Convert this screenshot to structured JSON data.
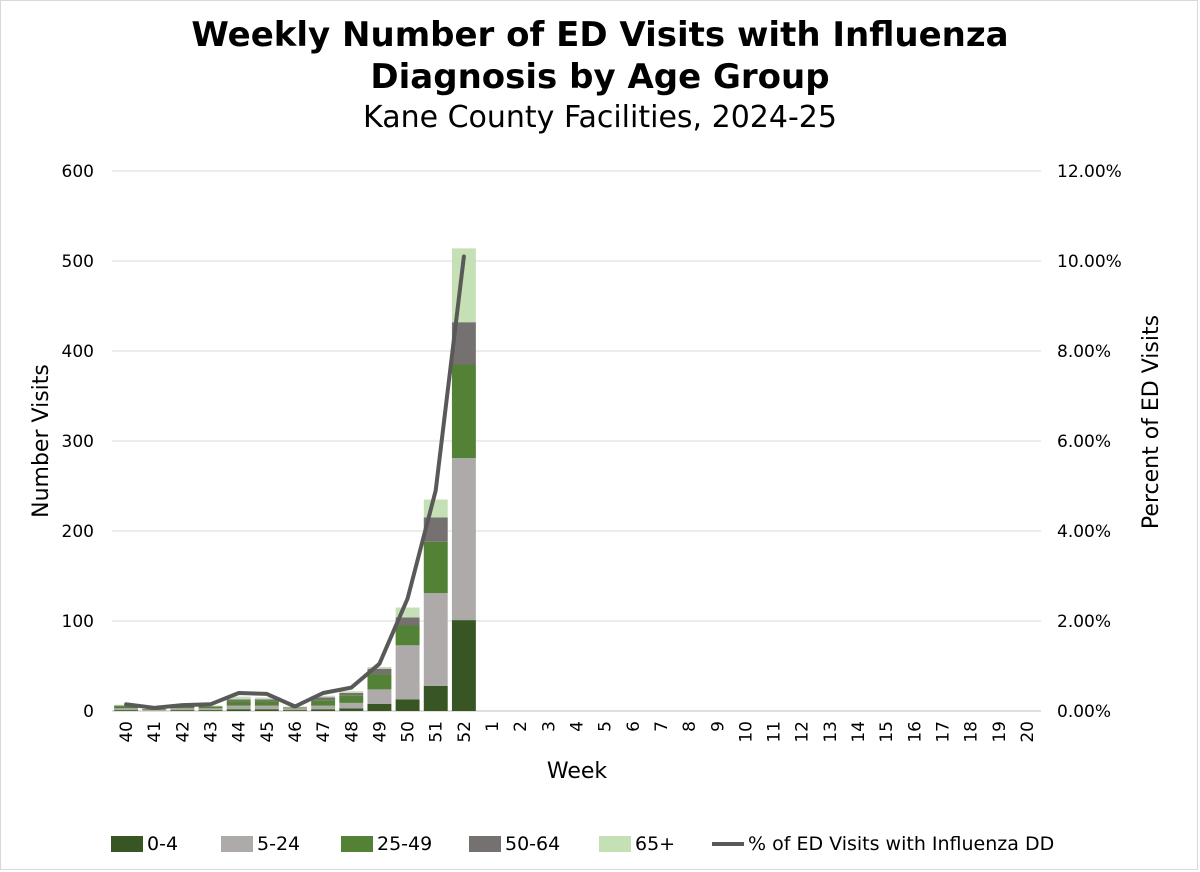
{
  "chart_data": {
    "type": "bar",
    "stacked": true,
    "title_lines": [
      "Weekly Number of ED Visits with Influenza",
      "Diagnosis by Age Group"
    ],
    "subtitle": "Kane County Facilities, 2024-25",
    "xlabel": "Week",
    "ylabel": "Number Visits",
    "y2label": "Percent of ED Visits",
    "ylim": [
      0,
      600
    ],
    "yticks": [
      "0",
      "100",
      "200",
      "300",
      "400",
      "500",
      "600"
    ],
    "y2lim": [
      0,
      12
    ],
    "y2ticks": [
      "0.00%",
      "2.00%",
      "4.00%",
      "6.00%",
      "8.00%",
      "10.00%",
      "12.00%"
    ],
    "categories": [
      "40",
      "41",
      "42",
      "43",
      "44",
      "45",
      "46",
      "47",
      "48",
      "49",
      "50",
      "51",
      "52",
      "1",
      "2",
      "3",
      "4",
      "5",
      "6",
      "7",
      "8",
      "9",
      "10",
      "11",
      "12",
      "13",
      "14",
      "15",
      "16",
      "17",
      "18",
      "19",
      "20"
    ],
    "series": [
      {
        "name": "0-4",
        "color": "#375623",
        "values": [
          1,
          0,
          1,
          1,
          2,
          2,
          1,
          2,
          3,
          8,
          13,
          28,
          101,
          null,
          null,
          null,
          null,
          null,
          null,
          null,
          null,
          null,
          null,
          null,
          null,
          null,
          null,
          null,
          null,
          null,
          null,
          null,
          null
        ]
      },
      {
        "name": "5-24",
        "color": "#aeaaaa",
        "values": [
          2,
          1,
          2,
          2,
          4,
          4,
          2,
          4,
          6,
          16,
          60,
          103,
          180,
          null,
          null,
          null,
          null,
          null,
          null,
          null,
          null,
          null,
          null,
          null,
          null,
          null,
          null,
          null,
          null,
          null,
          null,
          null,
          null
        ]
      },
      {
        "name": "25-49",
        "color": "#538135",
        "values": [
          2,
          1,
          2,
          2,
          5,
          5,
          1,
          6,
          8,
          17,
          22,
          57,
          104,
          null,
          null,
          null,
          null,
          null,
          null,
          null,
          null,
          null,
          null,
          null,
          null,
          null,
          null,
          null,
          null,
          null,
          null,
          null,
          null
        ]
      },
      {
        "name": "50-64",
        "color": "#767171",
        "values": [
          1,
          0,
          0,
          0,
          2,
          2,
          0,
          3,
          3,
          6,
          9,
          27,
          47,
          null,
          null,
          null,
          null,
          null,
          null,
          null,
          null,
          null,
          null,
          null,
          null,
          null,
          null,
          null,
          null,
          null,
          null,
          null,
          null
        ]
      },
      {
        "name": "65+",
        "color": "#c5e0b4",
        "values": [
          1,
          0,
          1,
          1,
          3,
          2,
          1,
          2,
          2,
          2,
          11,
          20,
          82,
          null,
          null,
          null,
          null,
          null,
          null,
          null,
          null,
          null,
          null,
          null,
          null,
          null,
          null,
          null,
          null,
          null,
          null,
          null,
          null
        ]
      }
    ],
    "line_series": {
      "name": "% of ED Visits with Influenza DD",
      "color": "#595959",
      "axis": "right",
      "values": [
        0.15,
        0.07,
        0.13,
        0.15,
        0.4,
        0.38,
        0.1,
        0.4,
        0.52,
        1.05,
        2.5,
        4.9,
        10.1,
        null,
        null,
        null,
        null,
        null,
        null,
        null,
        null,
        null,
        null,
        null,
        null,
        null,
        null,
        null,
        null,
        null,
        null,
        null,
        null
      ]
    },
    "grid": true,
    "legend_position": "bottom"
  }
}
